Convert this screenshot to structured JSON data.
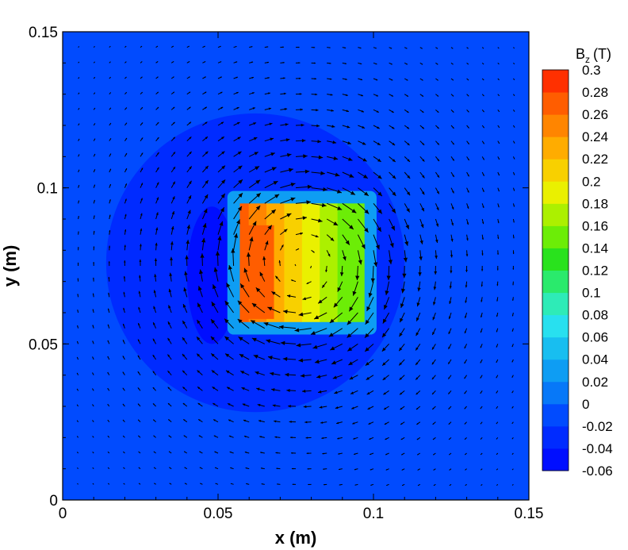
{
  "chart_data": {
    "type": "heatmap",
    "subtype": "filled-contour with vector overlay",
    "xlabel": "x (m)",
    "ylabel": "y (m)",
    "xlim": [
      0,
      0.15
    ],
    "ylim": [
      0,
      0.15
    ],
    "xticks": [
      "0",
      "0.05",
      "0.1",
      "0.15"
    ],
    "yticks": [
      "0",
      "0.05",
      "0.1",
      "0.15"
    ],
    "colorbar": {
      "title": "B",
      "title_subscript": "z",
      "title_unit": "(T)",
      "min": -0.06,
      "max": 0.3,
      "step": 0.02,
      "labels": [
        "0.3",
        "0.28",
        "0.26",
        "0.24",
        "0.22",
        "0.2",
        "0.18",
        "0.16",
        "0.14",
        "0.12",
        "0.1",
        "0.08",
        "0.06",
        "0.04",
        "0.02",
        "0",
        "-0.02",
        "-0.04",
        "-0.06"
      ]
    },
    "background_value": -0.01,
    "features": [
      {
        "kind": "disc",
        "center": [
          0.062,
          0.076
        ],
        "radius": 0.048,
        "value": -0.025
      },
      {
        "kind": "ellipse",
        "center": [
          0.048,
          0.072
        ],
        "radii": [
          0.008,
          0.022
        ],
        "value": -0.045
      },
      {
        "kind": "square-magnet",
        "xrange": [
          0.057,
          0.097
        ],
        "yrange": [
          0.057,
          0.095
        ],
        "value_min": 0.14,
        "value_max": 0.27,
        "peak_at": [
          0.06,
          0.068
        ]
      }
    ],
    "vector_field": {
      "description": "circulating vectors around the square region",
      "center": [
        0.077,
        0.076
      ],
      "grid_spacing": 0.005
    },
    "grid": false
  }
}
